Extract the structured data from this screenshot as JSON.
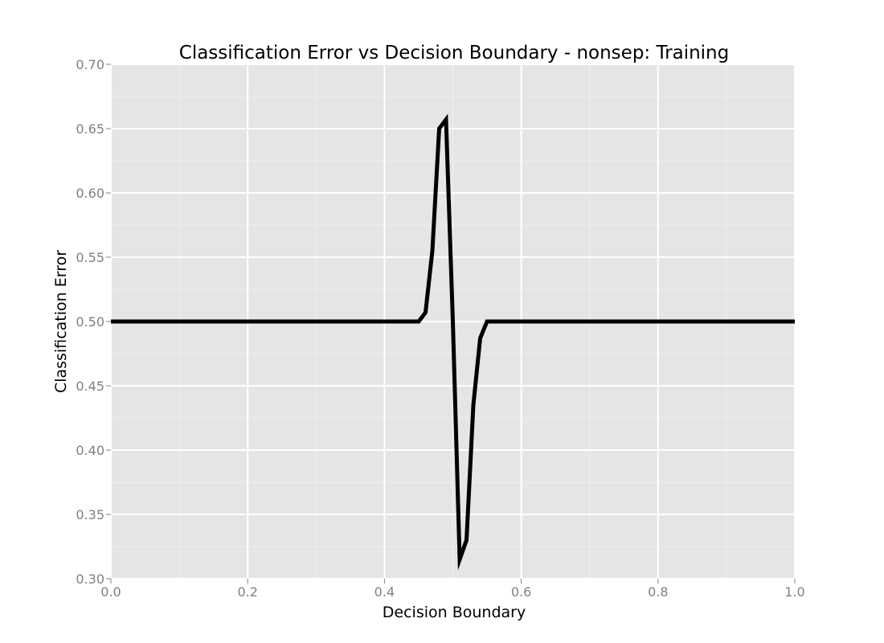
{
  "chart_data": {
    "type": "line",
    "title": "Classification Error vs Decision Boundary - nonsep: Training",
    "xlabel": "Decision Boundary",
    "ylabel": "Classification Error",
    "xlim": [
      0.0,
      1.0
    ],
    "ylim": [
      0.3,
      0.7
    ],
    "xticks": [
      "0.0",
      "0.2",
      "0.4",
      "0.6",
      "0.8",
      "1.0"
    ],
    "yticks": [
      "0.30",
      "0.35",
      "0.40",
      "0.45",
      "0.50",
      "0.55",
      "0.60",
      "0.65",
      "0.70"
    ],
    "grid": true,
    "legend": "none",
    "series": [
      {
        "color": "#000000",
        "x": [
          0.0,
          0.45,
          0.46,
          0.47,
          0.48,
          0.49,
          0.5,
          0.51,
          0.52,
          0.53,
          0.54,
          0.55,
          0.56,
          1.0
        ],
        "y": [
          0.5,
          0.5,
          0.507,
          0.555,
          0.65,
          0.657,
          0.5,
          0.315,
          0.33,
          0.435,
          0.487,
          0.5,
          0.5,
          0.5
        ]
      }
    ]
  },
  "colors": {
    "panel_background": "#e5e5e5",
    "major_grid": "#ffffff",
    "minor_grid": "#efefef",
    "line": "#000000",
    "tick_text": "#808080"
  }
}
